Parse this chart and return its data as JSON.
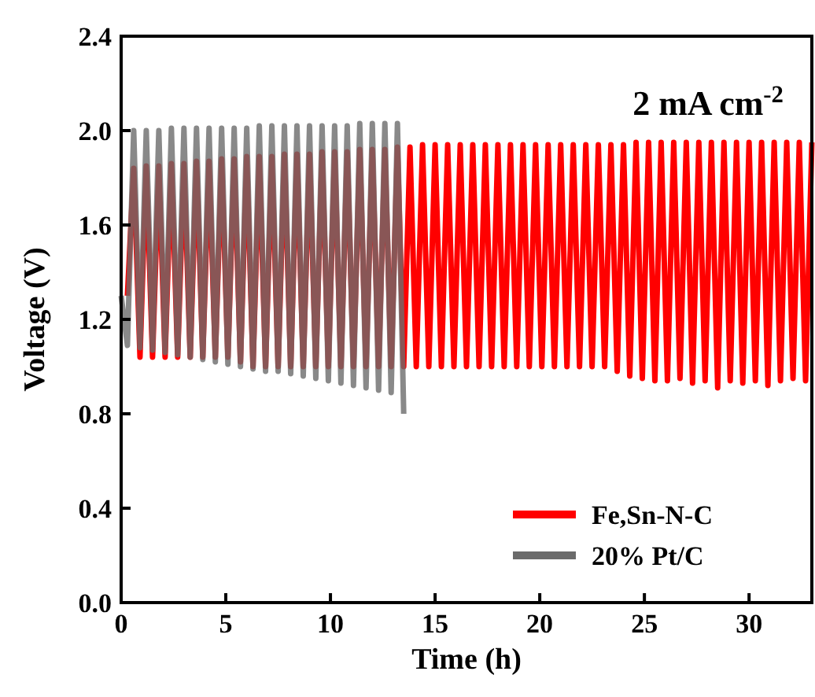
{
  "chart_data": {
    "type": "line",
    "xlabel": "Time (h)",
    "ylabel": "Voltage (V)",
    "annotations": [
      "2 mA cm$^{-2}$"
    ],
    "xlim": [
      0,
      33
    ],
    "xticks": [
      0,
      5,
      10,
      15,
      20,
      25,
      30
    ],
    "ylim": [
      0,
      2.4
    ],
    "yticks": [
      {
        "value": 0,
        "label": "0.0"
      },
      {
        "value": 0.4,
        "label": "0.4"
      },
      {
        "value": 0.8,
        "label": "0.8"
      },
      {
        "value": 1.2,
        "label": "1.2"
      },
      {
        "value": 1.6,
        "label": "1.6"
      },
      {
        "value": 2.0,
        "label": "2.0"
      },
      {
        "value": 2.4,
        "label": "2.4"
      }
    ],
    "legend": "bottom right",
    "series": [
      {
        "name": "Fe,Sn-N-C",
        "color": "#ff0000",
        "x": [
          0.3,
          0.6,
          0.9,
          1.2,
          1.5,
          1.8,
          2.1,
          2.4,
          2.7,
          3.0,
          3.3,
          3.6,
          3.9,
          4.2,
          4.5,
          4.8,
          5.1,
          5.4,
          5.7,
          6.0,
          6.3,
          6.6,
          6.9,
          7.2,
          7.5,
          7.8,
          8.1,
          8.4,
          8.7,
          9.0,
          9.3,
          9.6,
          9.9,
          10.2,
          10.5,
          10.8,
          11.1,
          11.4,
          11.7,
          12.0,
          12.3,
          12.6,
          12.9,
          13.2,
          13.5,
          13.8,
          14.1,
          14.4,
          14.7,
          15.0,
          15.3,
          15.6,
          15.9,
          16.2,
          16.5,
          16.8,
          17.1,
          17.4,
          17.7,
          18.0,
          18.3,
          18.6,
          18.9,
          19.2,
          19.5,
          19.8,
          20.1,
          20.4,
          20.7,
          21.0,
          21.3,
          21.6,
          21.9,
          22.2,
          22.5,
          22.8,
          23.1,
          23.4,
          23.7,
          24.0,
          24.3,
          24.6,
          24.9,
          25.2,
          25.5,
          25.8,
          26.1,
          26.4,
          26.7,
          27.0,
          27.3,
          27.6,
          27.9,
          28.2,
          28.5,
          28.8,
          29.1,
          29.4,
          29.7,
          30.0,
          30.3,
          30.6,
          30.9,
          31.2,
          31.5,
          31.8,
          32.1,
          32.4,
          32.7,
          33.0
        ],
        "values": [
          1.3,
          1.84,
          1.04,
          1.85,
          1.04,
          1.85,
          1.04,
          1.86,
          1.04,
          1.86,
          1.04,
          1.87,
          1.04,
          1.87,
          1.04,
          1.88,
          1.04,
          1.88,
          1.02,
          1.89,
          1.0,
          1.89,
          1.0,
          1.89,
          1.0,
          1.9,
          1.0,
          1.9,
          1.0,
          1.9,
          1.0,
          1.91,
          1.0,
          1.91,
          1.0,
          1.91,
          1.0,
          1.92,
          1.0,
          1.92,
          1.0,
          1.92,
          1.0,
          1.93,
          1.0,
          1.93,
          1.0,
          1.94,
          1.0,
          1.94,
          1.0,
          1.94,
          1.0,
          1.94,
          1.0,
          1.94,
          1.0,
          1.94,
          1.0,
          1.94,
          1.0,
          1.94,
          1.0,
          1.94,
          1.0,
          1.94,
          1.0,
          1.94,
          1.0,
          1.94,
          1.0,
          1.94,
          1.0,
          1.94,
          1.0,
          1.94,
          1.0,
          1.94,
          0.98,
          1.94,
          0.96,
          1.95,
          0.95,
          1.95,
          0.94,
          1.95,
          0.94,
          1.95,
          0.95,
          1.95,
          0.93,
          1.95,
          0.94,
          1.95,
          0.91,
          1.95,
          0.94,
          1.95,
          0.93,
          1.95,
          0.94,
          1.95,
          0.92,
          1.95,
          0.94,
          1.95,
          0.95,
          1.95,
          0.94,
          1.95
        ]
      },
      {
        "name": "20% Pt/C",
        "color": "#6b6b6b",
        "x": [
          0,
          0.3,
          0.6,
          0.9,
          1.2,
          1.5,
          1.8,
          2.1,
          2.4,
          2.7,
          3.0,
          3.3,
          3.6,
          3.9,
          4.2,
          4.5,
          4.8,
          5.1,
          5.4,
          5.7,
          6.0,
          6.3,
          6.6,
          6.9,
          7.2,
          7.5,
          7.8,
          8.1,
          8.4,
          8.7,
          9.0,
          9.3,
          9.6,
          9.9,
          10.2,
          10.5,
          10.8,
          11.1,
          11.4,
          11.7,
          12.0,
          12.3,
          12.6,
          12.9,
          13.2,
          13.5
        ],
        "values": [
          1.3,
          1.09,
          2.0,
          1.08,
          2.0,
          1.07,
          2.0,
          1.06,
          2.01,
          1.05,
          2.01,
          1.04,
          2.01,
          1.03,
          2.01,
          1.02,
          2.01,
          1.01,
          2.01,
          1.0,
          2.01,
          0.99,
          2.02,
          0.98,
          2.02,
          0.98,
          2.02,
          0.97,
          2.02,
          0.96,
          2.02,
          0.95,
          2.02,
          0.94,
          2.02,
          0.93,
          2.02,
          0.92,
          2.03,
          0.91,
          2.03,
          0.9,
          2.03,
          0.89,
          2.03,
          0.8
        ]
      }
    ]
  }
}
